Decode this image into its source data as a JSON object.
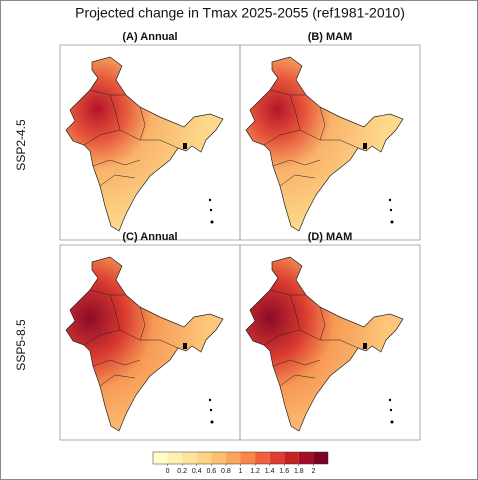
{
  "title": "Projected change in Tmax 2025-2055 (ref1981-2010)",
  "panels": [
    {
      "label": "(A) Annual"
    },
    {
      "label": "(B) MAM"
    },
    {
      "label": "(C) Annual"
    },
    {
      "label": "(D) MAM"
    }
  ],
  "rows": [
    "SSP2-4.5",
    "SSP5-8.5"
  ],
  "colorbar": {
    "ticks": [
      0,
      0.2,
      0.4,
      0.6,
      0.8,
      1,
      1.2,
      1.4,
      1.6,
      1.8,
      2
    ],
    "colors": [
      "#ffffcc",
      "#fff0b0",
      "#fee39a",
      "#fed383",
      "#fdbf6f",
      "#fda45c",
      "#f7864b",
      "#ee633d",
      "#de3f30",
      "#c42126",
      "#a20d28",
      "#7a0026"
    ]
  }
}
